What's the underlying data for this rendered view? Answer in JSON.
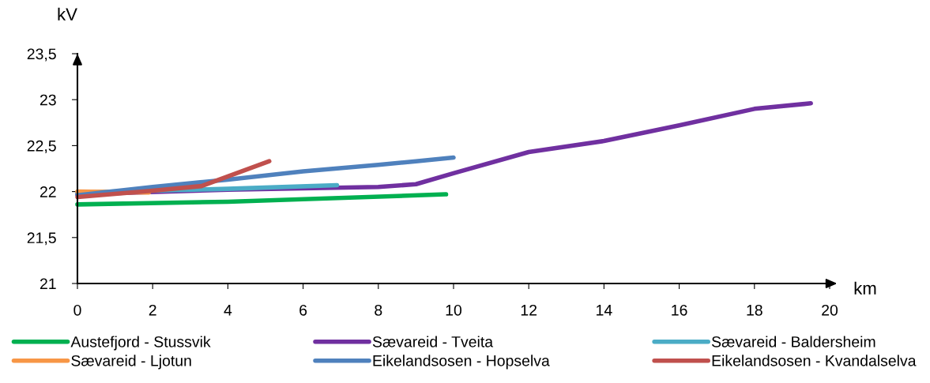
{
  "chart_data": {
    "type": "line",
    "ylabel": "kV",
    "xlabel": "km",
    "xlim": [
      0,
      20
    ],
    "xticks": [
      0,
      2,
      4,
      6,
      8,
      10,
      12,
      14,
      16,
      18,
      20
    ],
    "ylim": [
      21,
      23.5
    ],
    "yticks": [
      {
        "value": 21,
        "label": "21"
      },
      {
        "value": 21.5,
        "label": "21,5"
      },
      {
        "value": 22,
        "label": "22"
      },
      {
        "value": 22.5,
        "label": "22,5"
      },
      {
        "value": 23,
        "label": "23"
      },
      {
        "value": 23.5,
        "label": "23,5"
      }
    ],
    "grid": false,
    "legend": "bottom",
    "marker": "none",
    "line_style": "solid",
    "series": [
      {
        "name": "Austefjord - Stussvik",
        "color": "#00b050",
        "x": [
          0,
          4,
          9.8
        ],
        "values": [
          21.86,
          21.89,
          21.97
        ]
      },
      {
        "name": "Sævareid - Tveita",
        "color": "#7030a0",
        "x": [
          0,
          4,
          8,
          9,
          10,
          12,
          14,
          16,
          18,
          19.5
        ],
        "values": [
          21.97,
          22.02,
          22.05,
          22.08,
          22.2,
          22.43,
          22.55,
          22.72,
          22.9,
          22.96
        ]
      },
      {
        "name": "Sævareid - Baldersheim",
        "color": "#4bacc6",
        "x": [
          0,
          4,
          6.9
        ],
        "values": [
          21.99,
          22.03,
          22.07
        ]
      },
      {
        "name": "Sævareid - Ljotun",
        "color": "#f79646",
        "x": [
          0,
          1.9
        ],
        "values": [
          22.0,
          21.99
        ]
      },
      {
        "name": "Eikelandsosen - Hopselva",
        "color": "#4f81bd",
        "x": [
          0,
          2,
          4,
          6,
          8,
          9,
          10
        ],
        "values": [
          21.96,
          22.05,
          22.13,
          22.22,
          22.29,
          22.33,
          22.37
        ]
      },
      {
        "name": "Eikelandsosen - Kvandalselva",
        "color": "#c0504d",
        "x": [
          0,
          2,
          3.3,
          5.1
        ],
        "values": [
          21.94,
          22.01,
          22.06,
          22.33
        ]
      }
    ]
  }
}
